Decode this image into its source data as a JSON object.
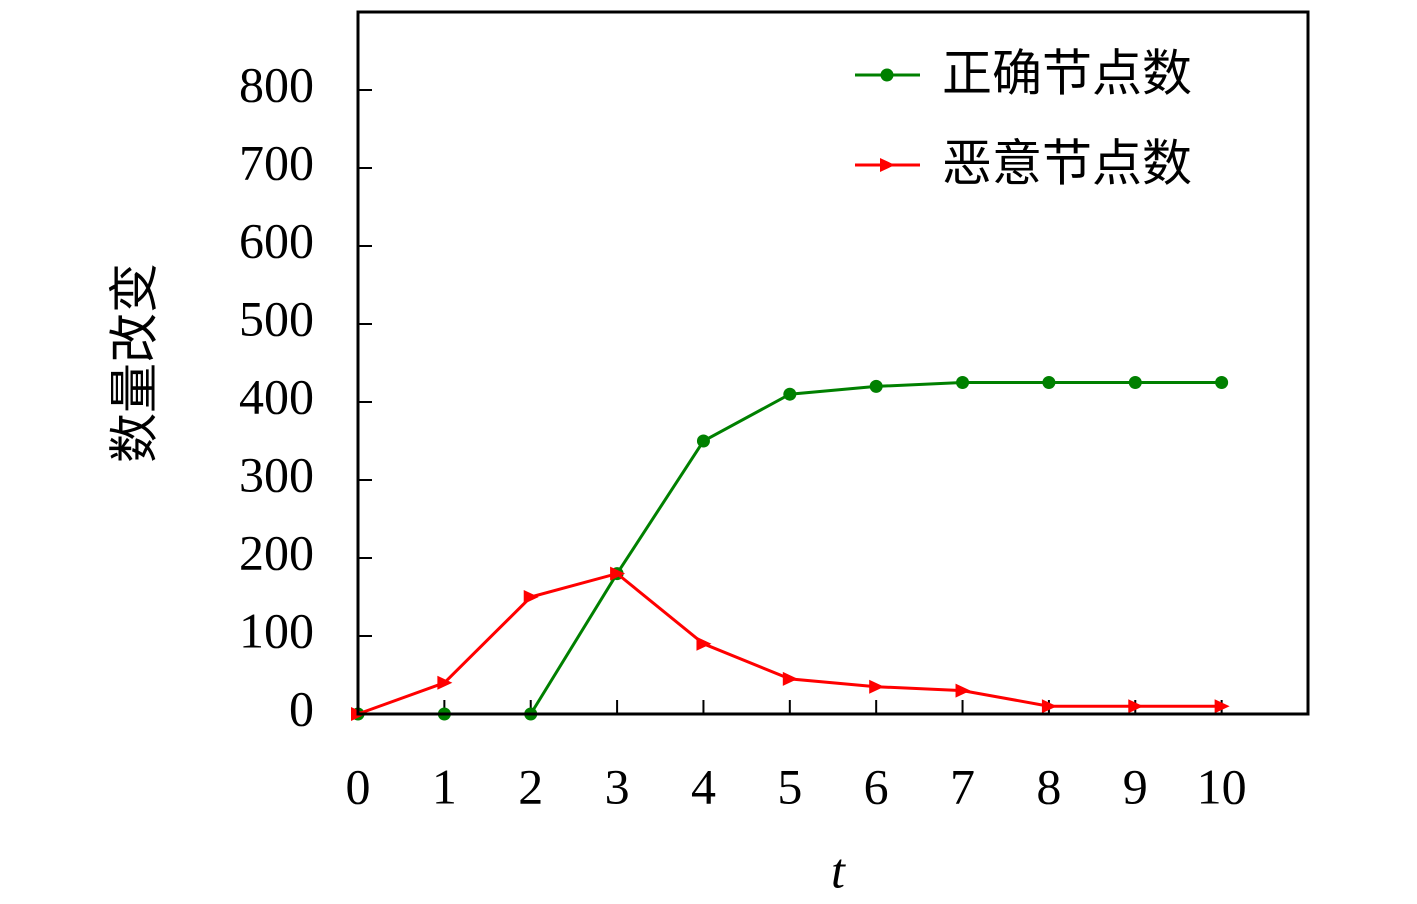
{
  "chart_data": {
    "type": "line",
    "x_label": "t",
    "y_label": "数量改变",
    "x": [
      0,
      1,
      2,
      3,
      4,
      5,
      6,
      7,
      8,
      9,
      10
    ],
    "series": [
      {
        "name": "正确节点数",
        "color": "#008000",
        "marker": "circle",
        "values": [
          0,
          0,
          0,
          180,
          350,
          410,
          420,
          425,
          425,
          425,
          425
        ]
      },
      {
        "name": "恶意节点数",
        "color": "#ff0000",
        "marker": "triangle",
        "values": [
          0,
          40,
          150,
          180,
          90,
          45,
          35,
          30,
          10,
          10,
          10
        ]
      }
    ],
    "xlim": [
      0,
      11
    ],
    "xticks": [
      0,
      1,
      2,
      3,
      4,
      5,
      6,
      7,
      8,
      9,
      10
    ],
    "ylim": [
      0,
      900
    ],
    "yticks": [
      0,
      100,
      200,
      300,
      400,
      500,
      600,
      700,
      800
    ],
    "legend": "upper right",
    "grid": false
  }
}
